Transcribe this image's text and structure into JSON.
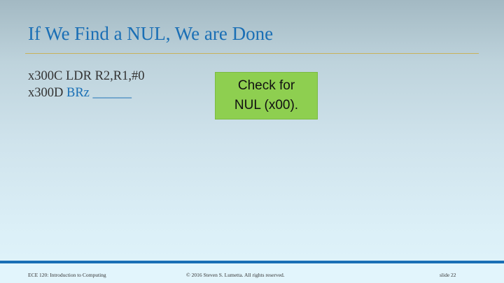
{
  "slide": {
    "title": "If We Find a NUL, We are Done",
    "code": [
      {
        "address": "x300C",
        "instruction": "LDR R2,R1,#0"
      },
      {
        "address": "x300D",
        "instruction": "BRz",
        "blank": "______"
      }
    ],
    "callout": {
      "line1": "Check for",
      "line2": "NUL (x00)."
    },
    "footer": {
      "course": "ECE 120: Introduction to Computing",
      "copyright": "© 2016 Steven S. Lumetta.  All rights reserved.",
      "slide_number": "slide 22"
    }
  },
  "colors": {
    "title": "#1a6fb5",
    "accent_blue": "#1a6fb5",
    "callout_fill": "#8ecf50",
    "rule": "#c9b25a"
  }
}
